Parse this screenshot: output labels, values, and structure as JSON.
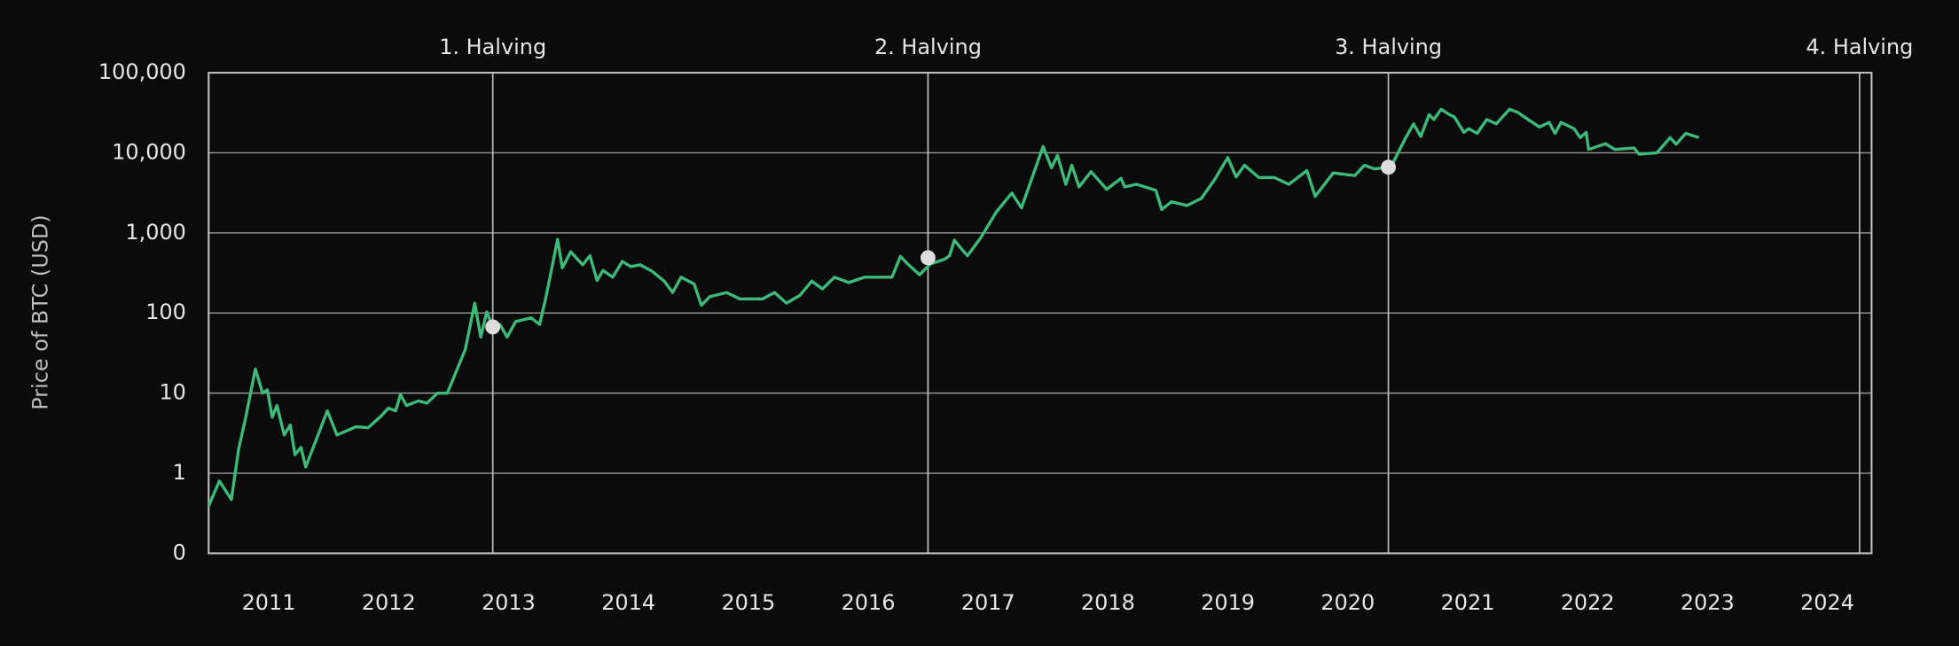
{
  "chart_data": {
    "type": "line",
    "y_label": "Price of BTC (USD)",
    "log_scale": true,
    "color": "#3dba7a",
    "x": [
      2010.53,
      2010.62,
      2010.72,
      2010.78,
      2010.84,
      2010.92,
      2010.98,
      2011.02,
      2011.06,
      2011.1,
      2011.16,
      2011.21,
      2011.25,
      2011.3,
      2011.34,
      2011.52,
      2011.6,
      2011.76,
      2011.86,
      2011.97,
      2012.03,
      2012.09,
      2012.13,
      2012.18,
      2012.28,
      2012.35,
      2012.44,
      2012.52,
      2012.67,
      2012.75,
      2012.8,
      2012.85,
      2012.9,
      2012.96,
      2013.02,
      2013.09,
      2013.22,
      2013.29,
      2013.34,
      2013.44,
      2013.48,
      2013.55,
      2013.65,
      2013.71,
      2013.77,
      2013.82,
      2013.9,
      2013.98,
      2014.05,
      2014.13,
      2014.23,
      2014.33,
      2014.4,
      2014.47,
      2014.58,
      2014.64,
      2014.71,
      2014.85,
      2014.96,
      2015.04,
      2015.15,
      2015.25,
      2015.35,
      2015.46,
      2015.56,
      2015.65,
      2015.75,
      2015.87,
      2016.0,
      2016.14,
      2016.23,
      2016.3,
      2016.36,
      2016.46,
      2016.55,
      2016.67,
      2016.71,
      2016.75,
      2016.81,
      2016.86,
      2016.97,
      2017.1,
      2017.23,
      2017.31,
      2017.49,
      2017.56,
      2017.61,
      2017.68,
      2017.73,
      2017.79,
      2017.89,
      2018.02,
      2018.14,
      2018.17,
      2018.27,
      2018.43,
      2018.48,
      2018.56,
      2018.69,
      2018.81,
      2018.92,
      2019.03,
      2019.1,
      2019.17,
      2019.29,
      2019.42,
      2019.54,
      2019.69,
      2019.76,
      2019.91,
      2020.09,
      2020.17,
      2020.25,
      2020.39,
      2020.51,
      2020.58,
      2020.64,
      2020.71,
      2020.75,
      2020.81,
      2020.88,
      2020.92,
      2021.0,
      2021.04,
      2021.11,
      2021.19,
      2021.27,
      2021.38,
      2021.45,
      2021.52,
      2021.63,
      2021.71,
      2021.76,
      2021.81,
      2021.92,
      2021.97,
      2022.02,
      2022.04,
      2022.18,
      2022.26,
      2022.42,
      2022.46,
      2022.61,
      2022.72,
      2022.77,
      2022.85,
      2022.96
    ],
    "values": [
      0.39,
      0.8,
      0.47,
      2,
      5,
      20,
      10,
      11,
      5,
      7,
      3,
      4,
      1.7,
      2.1,
      1.2,
      6,
      3,
      3.8,
      3.7,
      5.2,
      6.5,
      6,
      9.6,
      7,
      8,
      7.5,
      10,
      10,
      35,
      133,
      50,
      103,
      67,
      72,
      50,
      78,
      87,
      72,
      150,
      830,
      365,
      580,
      400,
      520,
      255,
      340,
      280,
      440,
      380,
      400,
      330,
      250,
      180,
      280,
      230,
      125,
      160,
      180,
      150,
      150,
      150,
      180,
      133,
      165,
      250,
      200,
      280,
      240,
      280,
      280,
      280,
      510,
      410,
      300,
      410,
      470,
      520,
      810,
      630,
      520,
      870,
      1830,
      3150,
      2050,
      12000,
      6500,
      9300,
      4050,
      7000,
      3750,
      5800,
      3500,
      4800,
      3750,
      4050,
      3400,
      1960,
      2450,
      2200,
      2700,
      4600,
      8700,
      5000,
      7000,
      4900,
      4900,
      4050,
      6000,
      2850,
      5600,
      5200,
      7000,
      6300,
      6600,
      15000,
      23000,
      16000,
      30000,
      26000,
      35000,
      30000,
      28000,
      18000,
      20000,
      17500,
      26000,
      23000,
      35000,
      32000,
      27000,
      21000,
      24000,
      17500,
      24000,
      20000,
      15500,
      18000,
      11000,
      13000,
      11000,
      11500,
      9600,
      10000,
      15500,
      12800,
      17500,
      15500
    ],
    "xlim": [
      2010.53,
      2024.4
    ],
    "xticks": [
      2011,
      2012,
      2013,
      2014,
      2015,
      2016,
      2017,
      2018,
      2019,
      2020,
      2021,
      2022,
      2023,
      2024
    ],
    "ylim": [
      0.1,
      100000
    ],
    "yticks": [
      {
        "value": 0.1,
        "label": "0"
      },
      1,
      10,
      100,
      {
        "value": 1000,
        "label": "1,000"
      },
      {
        "value": 10000,
        "label": "10,000"
      },
      {
        "value": 100000,
        "label": "100,000"
      }
    ],
    "grid": true,
    "annotations": [
      {
        "label": "1. Halving",
        "x": 2012.9,
        "y": 67
      },
      {
        "label": "2. Halving",
        "x": 2016.53,
        "y": 490
      },
      {
        "label": "3. Halving",
        "x": 2020.37,
        "y": 6600
      },
      {
        "label": "4. Halving",
        "x": 2024.3
      }
    ]
  }
}
